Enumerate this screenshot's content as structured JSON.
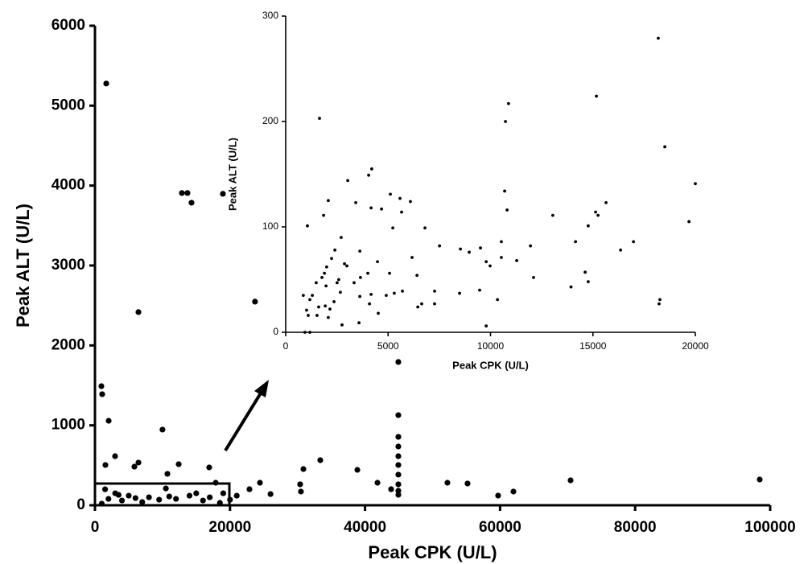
{
  "chart_data": [
    {
      "type": "scatter",
      "xlabel": "Peak CPK (U/L)",
      "ylabel": "Peak ALT (U/L)",
      "xlim": [
        0,
        100000
      ],
      "ylim": [
        0,
        6000
      ],
      "xticks": [
        0,
        20000,
        40000,
        60000,
        80000,
        100000
      ],
      "yticks": [
        0,
        1000,
        2000,
        3000,
        4000,
        5000,
        6000
      ],
      "color": "#000000",
      "x": [
        1670,
        12870,
        13700,
        14300,
        18950,
        23700,
        6440,
        950,
        1070,
        2030,
        10000,
        44930,
        44930,
        44930,
        44930,
        44930,
        44930,
        44930,
        44930,
        44930,
        44930,
        2980,
        1550,
        6440,
        5840,
        12400,
        10730,
        16920,
        17880,
        30870,
        33370,
        38860,
        41840,
        43860,
        52200,
        55180,
        59710,
        61980,
        70440,
        98450,
        30390,
        30500,
        24430,
        22880,
        26000,
        21000,
        20000,
        1500,
        3000,
        5000,
        8000,
        12000,
        15000,
        17000,
        19000,
        2000,
        4000,
        6000,
        7000,
        9500,
        11000,
        14000,
        16000,
        18500,
        1000,
        3500,
        10500
      ],
      "values": [
        5277,
        3907,
        3907,
        3786,
        3897,
        2548,
        2417,
        1490,
        1390,
        1057,
        947,
        1793,
        1128,
        856,
        735,
        614,
        504,
        383,
        262,
        181,
        131,
        614,
        504,
        534,
        483,
        514,
        393,
        473,
        282,
        453,
        564,
        443,
        282,
        201,
        282,
        272,
        121,
        171,
        312,
        322,
        262,
        171,
        282,
        201,
        140,
        120,
        70,
        200,
        150,
        120,
        100,
        80,
        150,
        100,
        150,
        80,
        60,
        90,
        40,
        70,
        110,
        120,
        60,
        30,
        20,
        130,
        210
      ]
    },
    {
      "type": "scatter",
      "xlabel": "Peak CPK (U/L)",
      "ylabel": "Peak ALT (U/L)",
      "xlim": [
        0,
        20000
      ],
      "ylim": [
        0,
        300
      ],
      "xticks": [
        0,
        5000,
        10000,
        15000,
        20000
      ],
      "yticks": [
        0,
        100,
        200,
        300
      ],
      "color": "#000000",
      "x": [
        18190,
        15170,
        10880,
        10730,
        1650,
        18510,
        4200,
        4050,
        3030,
        2080,
        5110,
        5580,
        6090,
        5660,
        3420,
        10810,
        10690,
        20000,
        15640,
        15130,
        15250,
        13040,
        19690,
        1060,
        1850,
        4170,
        4680,
        6800,
        14770,
        3620,
        5230,
        2710,
        2400,
        2240,
        2000,
        1770,
        1890,
        2870,
        2990,
        4480,
        5070,
        6170,
        7510,
        8530,
        8960,
        9510,
        9790,
        9980,
        10530,
        10530,
        11950,
        14150,
        16980,
        16350,
        12100,
        13930,
        14770,
        14620,
        11280,
        9470,
        10340,
        8490,
        7270,
        6410,
        5700,
        5300,
        4910,
        4170,
        3620,
        3650,
        4010,
        3340,
        2590,
        2670,
        2360,
        2160,
        1610,
        1530,
        1180,
        1020,
        1100,
        1300,
        860,
        940,
        1180,
        3580,
        9790,
        2750,
        2080,
        4090,
        4520,
        6450,
        6640,
        7270,
        18270,
        18230,
        1930,
        1970,
        1490,
        2510
      ],
      "values": [
        279,
        224,
        217,
        200,
        203,
        176,
        155,
        149,
        144,
        125,
        131,
        127,
        124,
        114,
        123,
        116,
        134,
        141,
        123,
        114,
        111,
        111,
        105,
        101,
        111,
        118,
        117,
        99,
        101,
        77,
        99,
        90,
        78,
        70,
        62,
        52,
        56,
        65,
        63,
        67,
        56,
        71,
        82,
        79,
        76,
        80,
        67,
        63,
        71,
        86,
        82,
        86,
        86,
        78,
        52,
        43,
        48,
        57,
        68,
        40,
        31,
        37,
        39,
        54,
        39,
        37,
        35,
        36,
        34,
        52,
        56,
        47,
        50,
        38,
        29,
        22,
        24,
        16,
        31,
        21,
        16,
        35,
        35,
        0,
        0,
        9,
        6,
        7,
        14,
        27,
        18,
        24,
        27,
        27,
        31,
        27,
        25,
        44,
        47,
        47
      ]
    }
  ]
}
